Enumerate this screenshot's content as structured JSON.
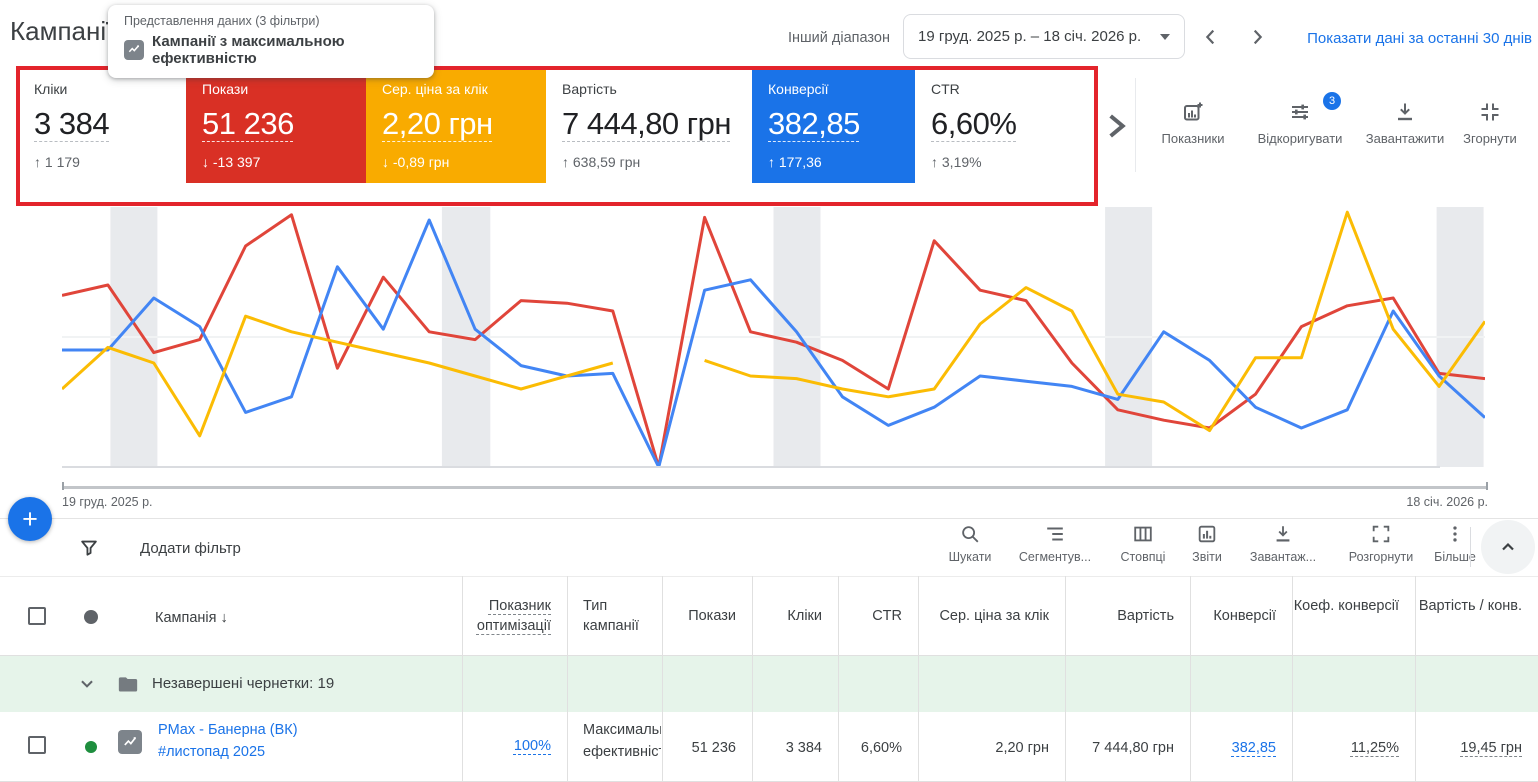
{
  "header": {
    "title": "Кампанії",
    "view_label": "Представлення даних (3 фільтри)",
    "view_name": "Кампанії з максимальною ефективністю",
    "other_range_label": "Інший діапазон",
    "date_range": "19 груд. 2025 р. – 18 січ. 2026 р.",
    "show_last_30": "Показати дані за останні 30 днів"
  },
  "metrics": {
    "cards": [
      {
        "label": "Кліки",
        "value": "3 384",
        "delta": "↑ 1 179",
        "bg": "#FFFFFF"
      },
      {
        "label": "Покази",
        "value": "51 236",
        "delta": "↓ -13 397",
        "bg": "#D93025"
      },
      {
        "label": "Сер. ціна за клік",
        "value": "2,20 грн",
        "delta": "↓ -0,89 грн",
        "bg": "#F9AB00"
      },
      {
        "label": "Вартість",
        "value": "7 444,80 грн",
        "delta": "↑ 638,59 грн",
        "bg": "#FFFFFF"
      },
      {
        "label": "Конверсії",
        "value": "382,85",
        "delta": "↑ 177,36",
        "bg": "#1A73E8"
      },
      {
        "label": "CTR",
        "value": "6,60%",
        "delta": "↑ 3,19%",
        "bg": "#FFFFFF"
      }
    ],
    "toolbar": [
      {
        "label": "Показники"
      },
      {
        "label": "Відкоригувати",
        "badge": "3"
      },
      {
        "label": "Завантажити"
      },
      {
        "label": "Згорнути"
      }
    ]
  },
  "chart": {
    "start_label": "19 груд. 2025 р.",
    "end_label": "18 січ. 2026 р."
  },
  "chart_data": {
    "type": "line",
    "title": "",
    "x_axis": {
      "start": "19 груд. 2025 р.",
      "end": "18 січ. 2026 р.",
      "n_points": 32
    },
    "y_axis": {
      "note": "values are % of chart height (estimated, no visible scale)",
      "range": [
        0,
        100
      ]
    },
    "grid": "single mid gridline",
    "legend": "colors match selected metric cards",
    "weekend_bands": [
      [
        0.034,
        0.067
      ],
      [
        0.267,
        0.301
      ],
      [
        0.5,
        0.533
      ],
      [
        0.733,
        0.766
      ],
      [
        0.966,
        0.999
      ]
    ],
    "series": [
      {
        "name": "Покази",
        "color": "#e0453a",
        "values": [
          66,
          70,
          44,
          49,
          85,
          97,
          38,
          73,
          52,
          49,
          64,
          63,
          60,
          0,
          96,
          52,
          48,
          41,
          30,
          87,
          68,
          64,
          40,
          22,
          18,
          15,
          28,
          54,
          62,
          65,
          36,
          34
        ]
      },
      {
        "name": "Конверсії",
        "color": "#4285f4",
        "values": [
          45,
          45,
          65,
          54,
          21,
          27,
          77,
          53,
          95,
          53,
          39,
          35,
          36,
          0,
          68,
          72,
          52,
          27,
          16,
          23,
          35,
          33,
          31,
          26,
          52,
          41,
          23,
          15,
          22,
          60,
          35,
          19
        ]
      },
      {
        "name": "Сер. ціна за клік",
        "color": "#fbbc04",
        "values": [
          30,
          46,
          40,
          12,
          58,
          52,
          48,
          44,
          40,
          35,
          30,
          35,
          40,
          null,
          41,
          35,
          34,
          30,
          27,
          30,
          55,
          69,
          60,
          28,
          25,
          14,
          42,
          42,
          98,
          53,
          31,
          56
        ]
      }
    ]
  },
  "fab": {
    "label": "+"
  },
  "filter": {
    "add_filter": "Додати фільтр",
    "toolbar": [
      {
        "label": "Шукати"
      },
      {
        "label": "Сегментув..."
      },
      {
        "label": "Стовпці"
      },
      {
        "label": "Звіти"
      },
      {
        "label": "Завантаж..."
      },
      {
        "label": "Розгорнути"
      },
      {
        "label": "Більше"
      }
    ]
  },
  "table": {
    "sort_indicator": "↓",
    "columns": [
      "Кампанія",
      "Показник оптимізації",
      "Тип кампанії",
      "Покази",
      "Кліки",
      "CTR",
      "Сер. ціна за клік",
      "Вартість",
      "Конверсії",
      "Коеф. конверсії",
      "Вартість / конв."
    ],
    "group_row": {
      "label": "Незавершені чернетки: 19"
    },
    "rows": [
      {
        "status": "enabled",
        "name": "PMax - Банерна (ВК)",
        "name2": "#листопад 2025",
        "opt_score": "100%",
        "type": "Максимальна ефективність",
        "impressions": "51 236",
        "clicks": "3 384",
        "ctr": "6,60%",
        "avg_cpc": "2,20 грн",
        "cost": "7 444,80 грн",
        "conversions": "382,85",
        "conv_rate": "11,25%",
        "cost_per_conv": "19,45 грн"
      }
    ]
  },
  "colors": {
    "accent_blue": "#1A73E8",
    "card_red": "#D93025",
    "card_yellow": "#F9AB00",
    "annotation_red": "#E3242B",
    "enabled_green": "#1E8E3E",
    "group_row_bg": "#E6F4EA",
    "text_dark": "#3C4043",
    "text_gray": "#5F6368",
    "border_gray": "#DADCE0"
  }
}
